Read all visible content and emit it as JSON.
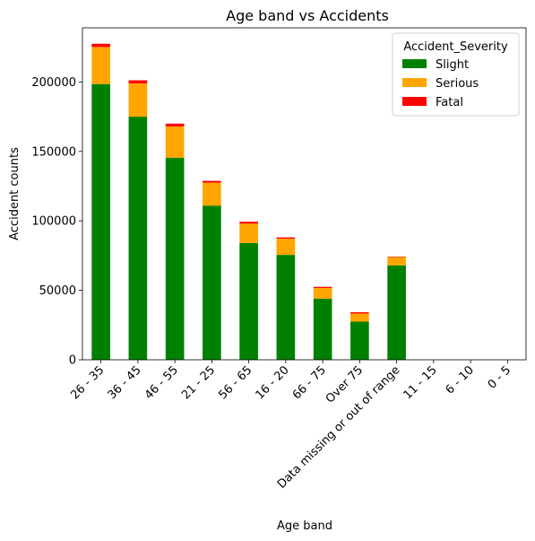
{
  "chart_data": {
    "type": "bar",
    "stacked": true,
    "title": "Age band vs Accidents",
    "xlabel": "Age band",
    "ylabel": "Accident counts",
    "categories": [
      "26 - 35",
      "36 - 45",
      "46 - 55",
      "21 - 25",
      "56 - 65",
      "16 - 20",
      "66 - 75",
      "Over 75",
      "Data missing or out of range",
      "11 - 15",
      "6 - 10",
      "0 - 5"
    ],
    "series": [
      {
        "name": "Slight",
        "color": "#008000",
        "values": [
          198500,
          175000,
          145500,
          111000,
          84000,
          75500,
          44000,
          27500,
          68000,
          0,
          0,
          0
        ]
      },
      {
        "name": "Serious",
        "color": "#FFA500",
        "values": [
          26700,
          24000,
          22500,
          16500,
          14000,
          11700,
          7700,
          5800,
          6000,
          0,
          0,
          0
        ]
      },
      {
        "name": "Fatal",
        "color": "#FF0000",
        "values": [
          2300,
          2200,
          2000,
          1300,
          1400,
          900,
          800,
          900,
          300,
          0,
          0,
          0
        ]
      }
    ],
    "ylim": [
      0,
      239000
    ],
    "yticks": [
      0,
      50000,
      100000,
      150000,
      200000
    ],
    "ytick_labels": [
      "0",
      "50000",
      "100000",
      "150000",
      "200000"
    ],
    "legend": {
      "title": "Accident_Severity",
      "position": "upper right"
    },
    "grid": false
  }
}
